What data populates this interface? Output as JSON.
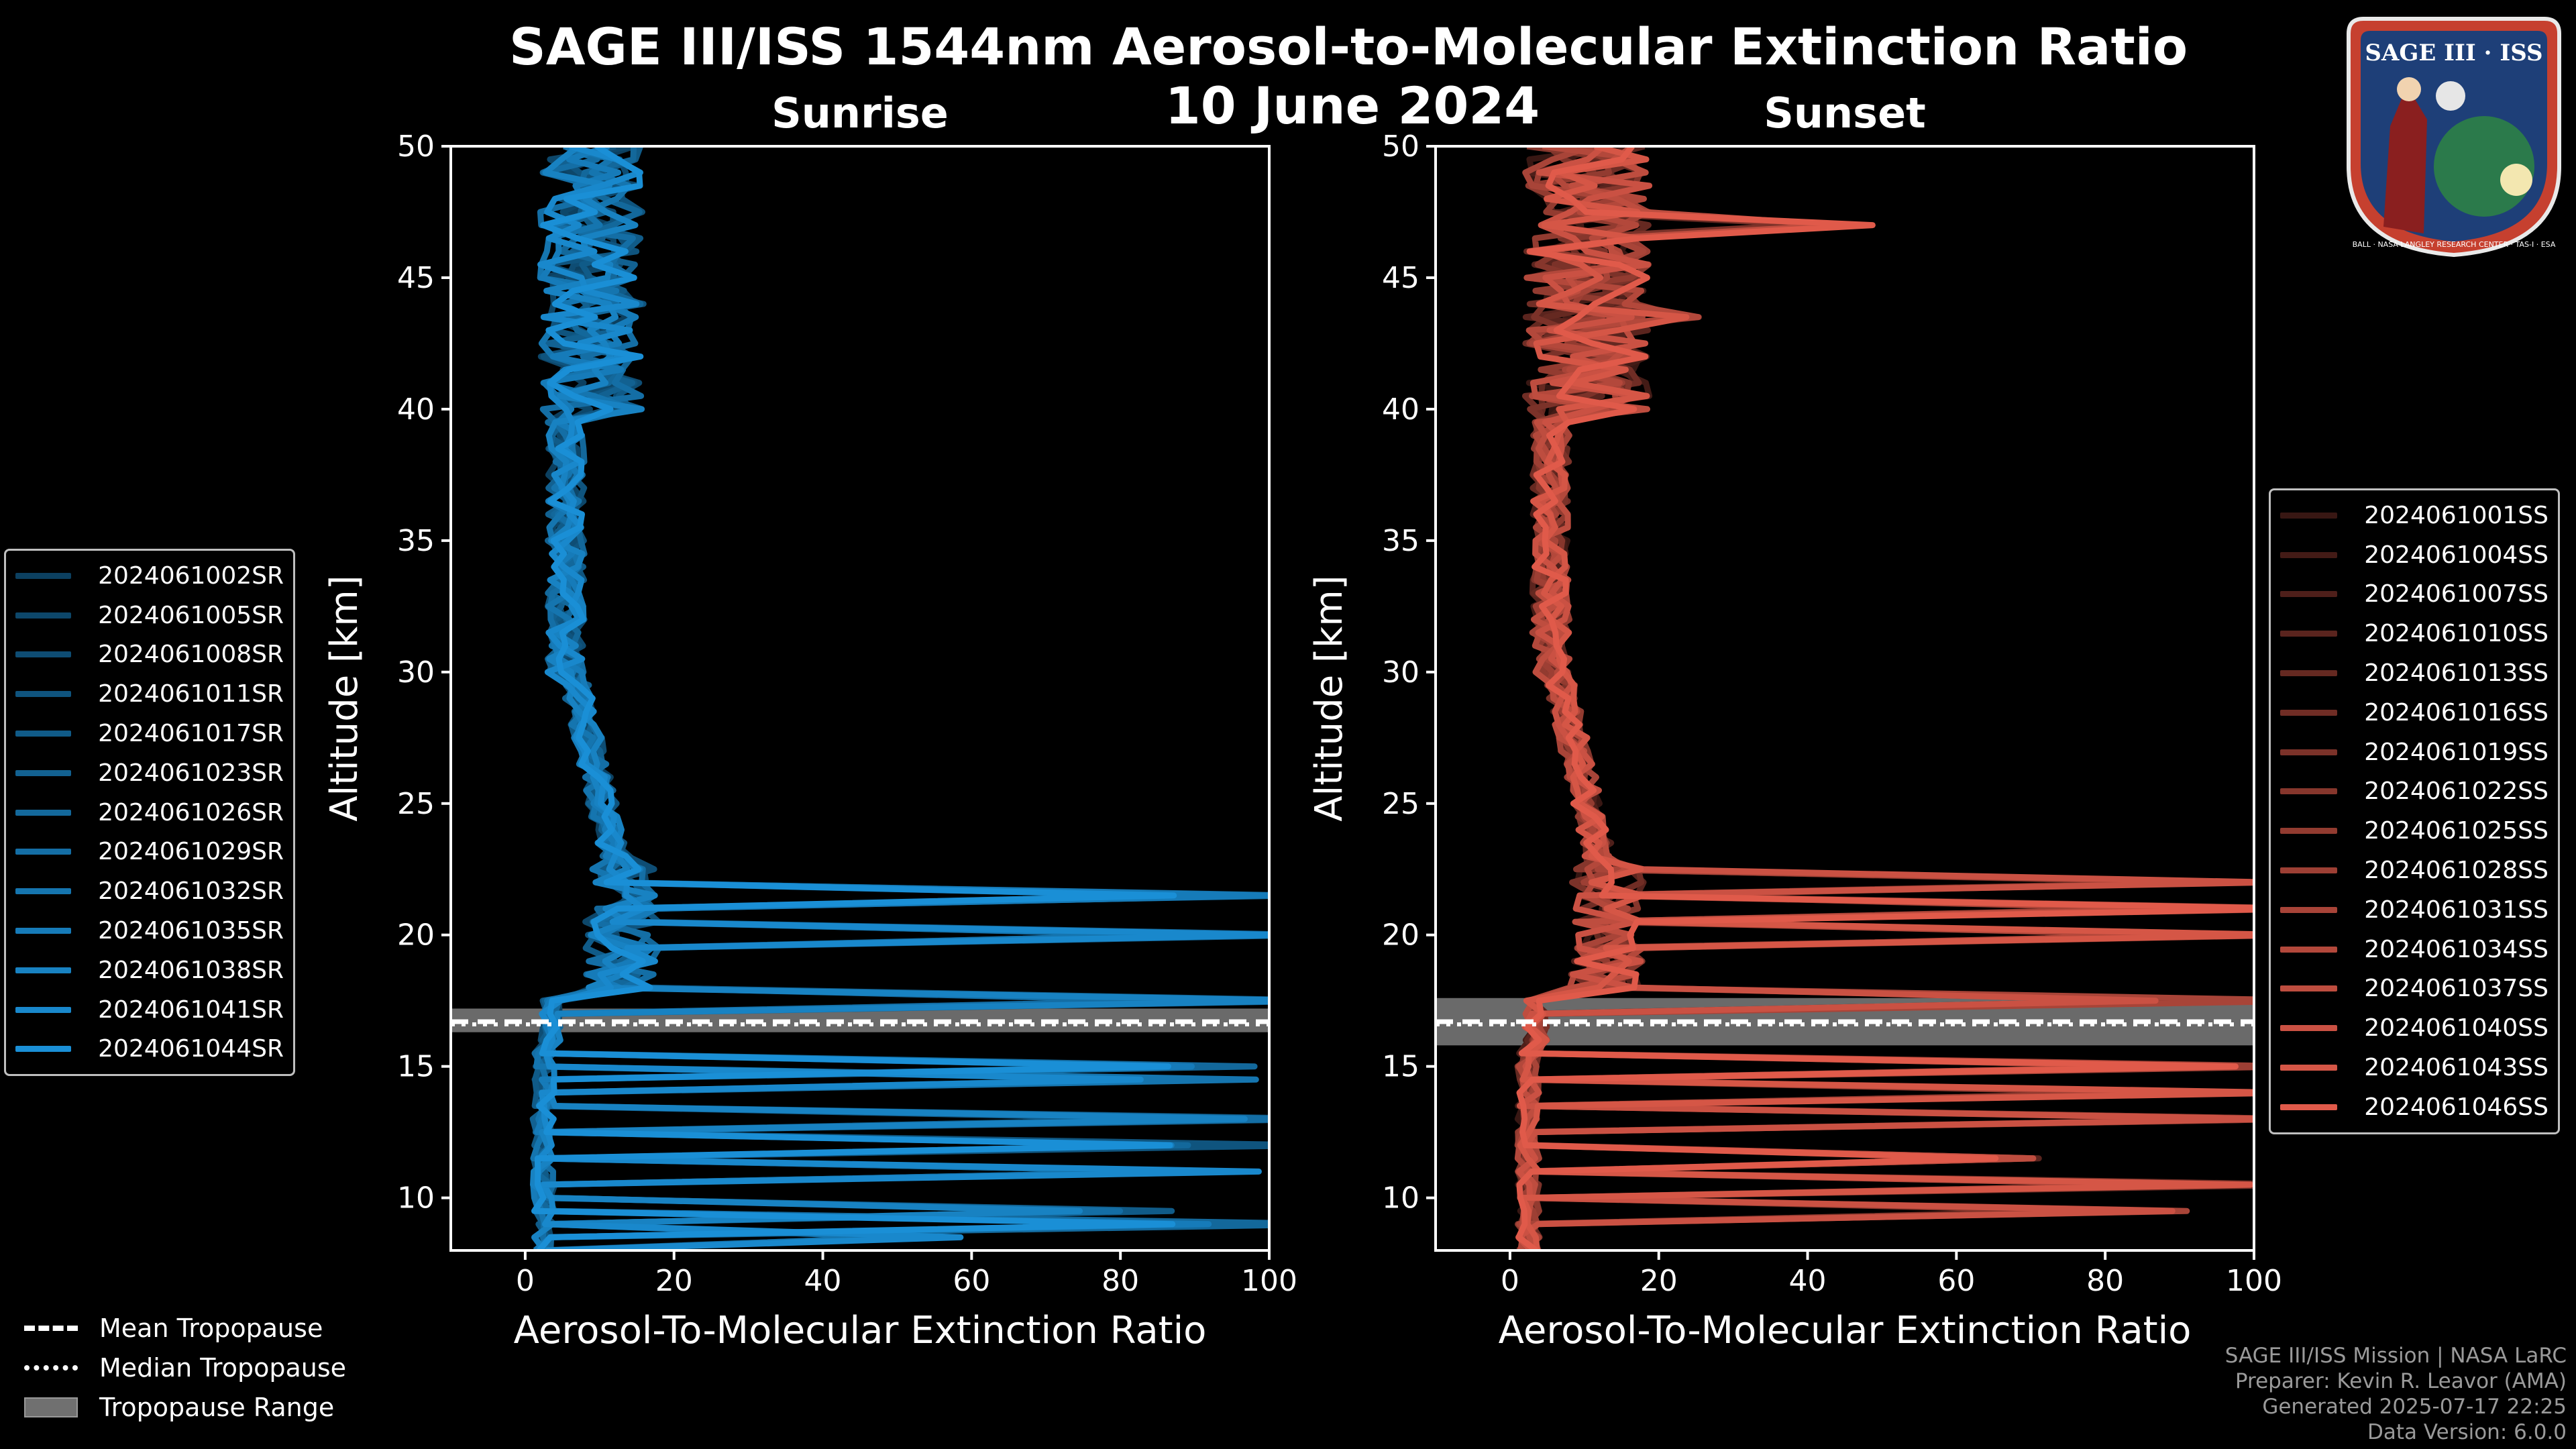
{
  "title": {
    "line1": "SAGE III/ISS 1544nm Aerosol-to-Molecular Extinction Ratio",
    "line2": "10 June 2024"
  },
  "logo": {
    "text_top": "SAGE III · ISS",
    "text_ring": "BALL · NASA LANGLEY RESEARCH CENTER · TAS-I · ESA"
  },
  "colors": {
    "background": "#000000",
    "sunrise": "#1a8fd6",
    "sunset": "#e05a4a",
    "tropo_range": "#707070"
  },
  "chart_data": [
    {
      "type": "line",
      "subtitle": "Sunrise",
      "xlabel": "Aerosol-To-Molecular Extinction Ratio",
      "ylabel": "Altitude [km]",
      "xlim": [
        -10,
        100
      ],
      "ylim": [
        8,
        50
      ],
      "xticks": [
        0,
        20,
        40,
        60,
        80,
        100
      ],
      "yticks": [
        10,
        15,
        20,
        25,
        30,
        35,
        40,
        45,
        50
      ],
      "mean_tropopause_km": 16.7,
      "median_tropopause_km": 16.7,
      "tropopause_range_km": [
        16.3,
        17.2
      ],
      "legend": [
        "2024061002SR",
        "2024061005SR",
        "2024061008SR",
        "2024061011SR",
        "2024061017SR",
        "2024061023SR",
        "2024061026SR",
        "2024061029SR",
        "2024061032SR",
        "2024061035SR",
        "2024061038SR",
        "2024061041SR",
        "2024061044SR"
      ],
      "series_count": 13,
      "spikes": [
        {
          "km": 21.5,
          "value": 100
        },
        {
          "km": 20.0,
          "value": 100
        },
        {
          "km": 17.3,
          "value": 100
        },
        {
          "km": 15.0,
          "value": 100
        },
        {
          "km": 14.6,
          "value": 95
        },
        {
          "km": 12.8,
          "value": 100
        },
        {
          "km": 11.9,
          "value": 100
        },
        {
          "km": 11.2,
          "value": 100
        },
        {
          "km": 9.5,
          "value": 87
        },
        {
          "km": 9.0,
          "value": 100
        },
        {
          "km": 8.5,
          "value": 55
        }
      ]
    },
    {
      "type": "line",
      "subtitle": "Sunset",
      "xlabel": "Aerosol-To-Molecular Extinction Ratio",
      "ylabel": "Altitude [km]",
      "xlim": [
        -10,
        100
      ],
      "ylim": [
        8,
        50
      ],
      "xticks": [
        0,
        20,
        40,
        60,
        80,
        100
      ],
      "yticks": [
        10,
        15,
        20,
        25,
        30,
        35,
        40,
        45,
        50
      ],
      "mean_tropopause_km": 16.7,
      "median_tropopause_km": 16.7,
      "tropopause_range_km": [
        15.8,
        17.6
      ],
      "legend": [
        "2024061001SS",
        "2024061004SS",
        "2024061007SS",
        "2024061010SS",
        "2024061013SS",
        "2024061016SS",
        "2024061019SS",
        "2024061022SS",
        "2024061025SS",
        "2024061028SS",
        "2024061031SS",
        "2024061034SS",
        "2024061037SS",
        "2024061040SS",
        "2024061043SS",
        "2024061046SS"
      ],
      "series_count": 16,
      "spikes": [
        {
          "km": 47.0,
          "value": 45
        },
        {
          "km": 43.5,
          "value": 25
        },
        {
          "km": 22.0,
          "value": 100
        },
        {
          "km": 21.0,
          "value": 100
        },
        {
          "km": 20.0,
          "value": 100
        },
        {
          "km": 17.6,
          "value": 100
        },
        {
          "km": 15.0,
          "value": 100
        },
        {
          "km": 14.0,
          "value": 100
        },
        {
          "km": 13.0,
          "value": 100
        },
        {
          "km": 11.5,
          "value": 75
        },
        {
          "km": 10.5,
          "value": 100
        },
        {
          "km": 9.5,
          "value": 90
        }
      ]
    }
  ],
  "tropopause_legend": {
    "mean": "Mean Tropopause",
    "median": "Median Tropopause",
    "range": "Tropopause Range"
  },
  "footer": {
    "line1": "SAGE III/ISS Mission | NASA LaRC",
    "line2": "Preparer: Kevin R. Leavor (AMA)",
    "line3": "Generated 2025-07-17 22:25",
    "line4": "Data Version: 6.0.0"
  }
}
